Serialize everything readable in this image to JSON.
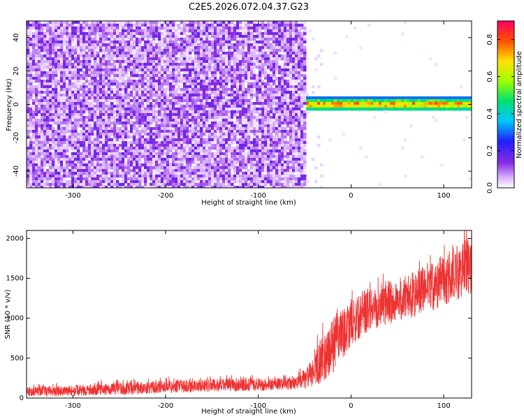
{
  "title": "C2E5.2026.072.04.37.G23",
  "chart_data": [
    {
      "type": "heatmap",
      "title": "C2E5.2026.072.04.37.G23",
      "xlabel": "Height of straight line (km)",
      "ylabel": "Frequency (Hz)",
      "xlim": [
        -350,
        130
      ],
      "ylim": [
        -50,
        50
      ],
      "x_ticks": [
        -300,
        -200,
        -100,
        0,
        100
      ],
      "y_ticks": [
        -40,
        -20,
        0,
        20,
        40
      ],
      "grid": false,
      "regions": [
        {
          "name": "noise",
          "x_range": [
            -350,
            -48
          ],
          "freq_range": [
            -50,
            50
          ],
          "amplitude_range": [
            0.0,
            0.2
          ]
        },
        {
          "name": "signal",
          "x_range": [
            -50,
            130
          ],
          "freq_center": 0,
          "freq_halfwidth": 4,
          "amplitude_range": [
            0.3,
            0.9
          ]
        }
      ],
      "colorbar": {
        "label": "Normalized spectral amplitude",
        "range": [
          0,
          0.9
        ],
        "ticks": [
          0.0,
          0.2,
          0.4,
          0.6,
          0.8
        ]
      }
    },
    {
      "type": "line",
      "xlabel": "Height of straight line (km)",
      "ylabel": "SNR (10 * v/v)",
      "xlim": [
        -350,
        130
      ],
      "ylim": [
        0,
        2100
      ],
      "x_ticks": [
        -300,
        -200,
        -100,
        0,
        100
      ],
      "y_ticks": [
        0,
        500,
        1000,
        1500,
        2000
      ],
      "grid": false,
      "color": "#ee3333",
      "envelope": {
        "x": [
          -350,
          -300,
          -250,
          -200,
          -150,
          -100,
          -60,
          -45,
          -35,
          -20,
          0,
          20,
          50,
          80,
          100,
          130
        ],
        "y_low": [
          20,
          25,
          40,
          60,
          80,
          90,
          100,
          110,
          170,
          300,
          650,
          850,
          950,
          1050,
          1150,
          1300
        ],
        "y_high": [
          140,
          160,
          190,
          220,
          240,
          250,
          260,
          420,
          700,
          1000,
          1200,
          1400,
          1500,
          1650,
          1800,
          2050
        ]
      }
    }
  ]
}
